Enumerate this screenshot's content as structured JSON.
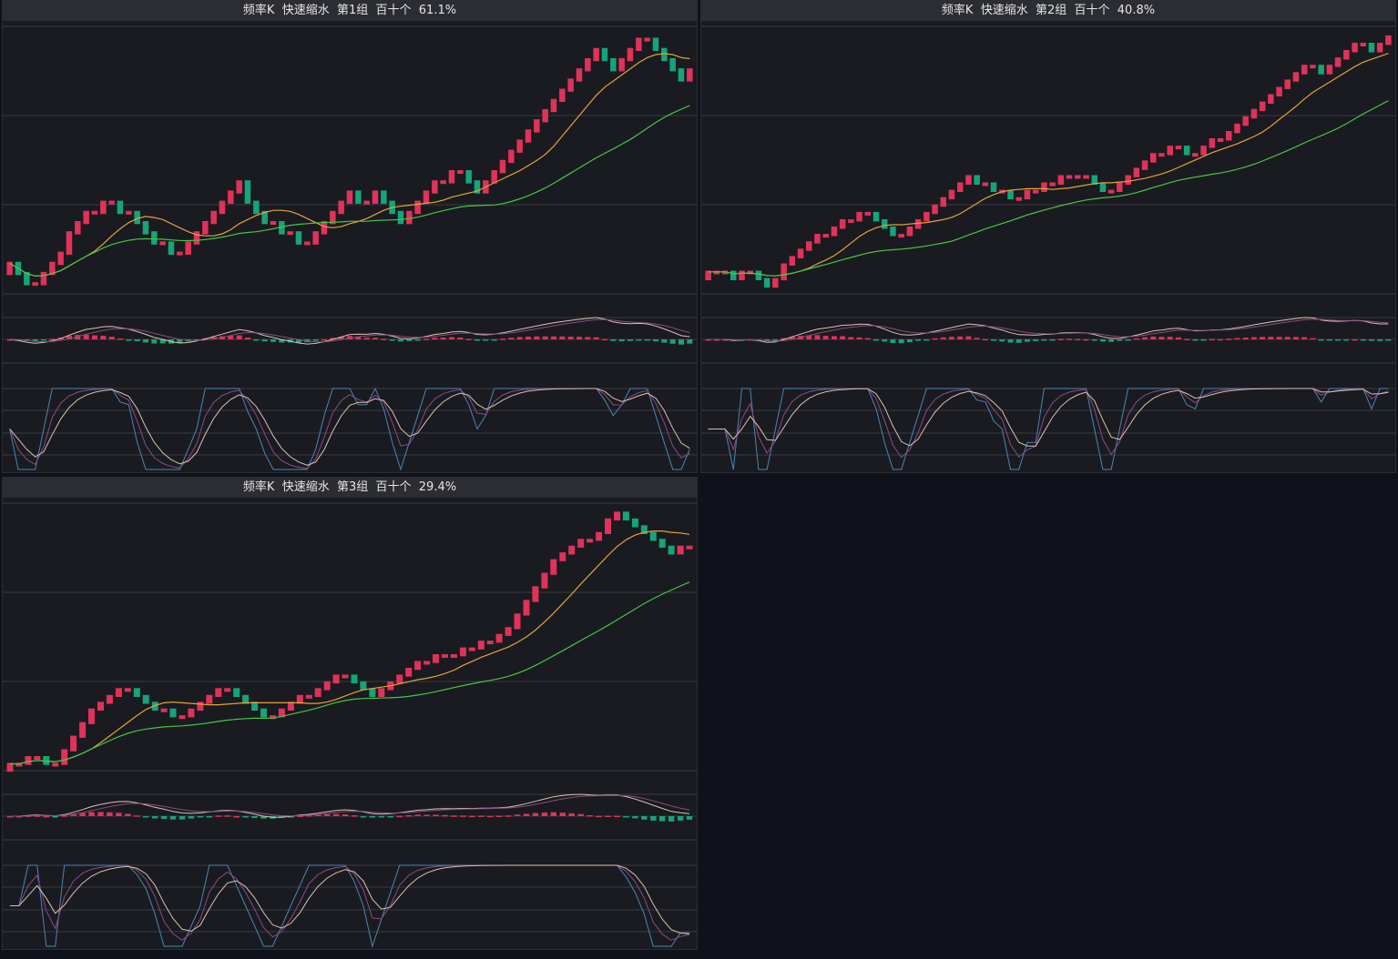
{
  "colors": {
    "panel_bg": "#1a1b20",
    "title_bg": "#2c2d33",
    "grid": "#3a3b42",
    "up": "#e0325a",
    "down": "#16a479",
    "ma_short": "#e3a23a",
    "ma_long": "#47c447",
    "osc_a": "#d9c2b0",
    "osc_b": "#8a4c84",
    "osc_c": "#4a86b4"
  },
  "panels": [
    {
      "title": "频率K  快速缩水  第1组  百十个  61.1%"
    },
    {
      "title": "频率K  快速缩水  第2组  百十个  40.8%"
    },
    {
      "title": "频率K  快速缩水  第3组  百十个  29.4%"
    }
  ],
  "chart_data": [
    {
      "type": "candlestick",
      "title": "频率K  快速缩水  第1组  百十个  61.1%",
      "grid": true,
      "subcharts": [
        "price with two moving averages",
        "histogram oscillator with two lines",
        "three-line oscillator"
      ],
      "close": [
        8,
        7,
        6,
        6,
        7,
        8,
        9,
        11,
        12,
        13,
        13,
        14,
        14,
        13,
        13,
        12,
        11,
        10,
        10,
        9,
        9,
        10,
        11,
        12,
        13,
        14,
        15,
        16,
        14,
        13,
        12,
        12,
        11,
        11,
        10,
        10,
        11,
        12,
        13,
        14,
        15,
        14,
        14,
        15,
        14,
        13,
        12,
        13,
        14,
        15,
        16,
        16,
        17,
        17,
        16,
        15,
        16,
        17,
        18,
        19,
        20,
        21,
        22,
        23,
        24,
        25,
        26,
        27,
        28,
        29,
        28,
        27,
        28,
        29,
        30,
        30,
        29,
        28,
        27,
        26,
        27
      ]
    },
    {
      "type": "candlestick",
      "title": "频率K  快速缩水  第2组  百十个  40.8%",
      "grid": true,
      "subcharts": [
        "price with two moving averages",
        "histogram oscillator with two lines",
        "three-line oscillator"
      ],
      "close": [
        6,
        6,
        6,
        5,
        6,
        6,
        5,
        4,
        5,
        7,
        8,
        9,
        10,
        11,
        11,
        12,
        13,
        13,
        14,
        14,
        13,
        12,
        11,
        11,
        12,
        13,
        14,
        15,
        16,
        17,
        18,
        19,
        18,
        18,
        17,
        17,
        16,
        16,
        17,
        17,
        18,
        18,
        19,
        19,
        19,
        19,
        18,
        17,
        17,
        18,
        19,
        20,
        21,
        22,
        22,
        23,
        23,
        22,
        22,
        23,
        24,
        24,
        25,
        26,
        27,
        28,
        29,
        30,
        31,
        32,
        33,
        34,
        34,
        33,
        34,
        35,
        36,
        37,
        37,
        36,
        37,
        38
      ]
    },
    {
      "type": "candlestick",
      "title": "频率K  快速缩水  第3组  百十个  29.4%",
      "grid": true,
      "subcharts": [
        "price with two moving averages",
        "histogram oscillator with two lines",
        "three-line oscillator"
      ],
      "close": [
        5,
        5,
        6,
        6,
        5,
        5,
        7,
        9,
        11,
        13,
        14,
        15,
        16,
        16,
        15,
        14,
        13,
        13,
        12,
        12,
        13,
        14,
        15,
        16,
        16,
        15,
        14,
        13,
        12,
        12,
        13,
        14,
        15,
        15,
        16,
        17,
        18,
        18,
        17,
        16,
        15,
        16,
        17,
        18,
        19,
        20,
        20,
        21,
        21,
        21,
        22,
        22,
        23,
        23,
        24,
        25,
        27,
        29,
        31,
        33,
        35,
        36,
        37,
        38,
        38,
        39,
        41,
        42,
        41,
        40,
        39,
        38,
        37,
        36,
        37,
        37
      ]
    }
  ]
}
